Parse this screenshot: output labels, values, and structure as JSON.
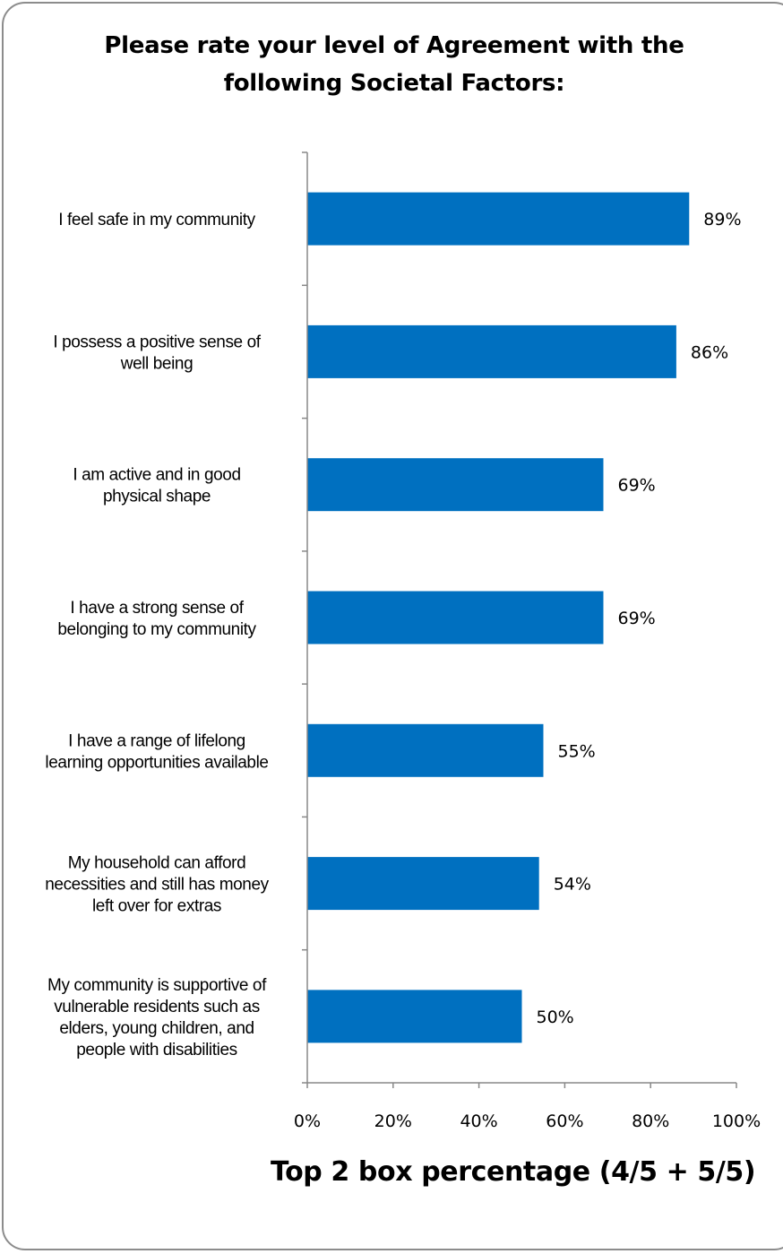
{
  "chart_data": {
    "type": "bar",
    "orientation": "horizontal",
    "title": "Please rate your level of Agreement with the following Societal Factors:",
    "xlabel": "Top 2 box percentage (4/5 + 5/5)",
    "ylabel": "",
    "categories": [
      "I feel safe in my community",
      "I possess a positive sense of well being",
      "I am active and in good physical shape",
      "I have a strong sense of belonging to my community",
      "I have a range of lifelong learning opportunities available",
      "My household can afford necessities and still has money left over for extras",
      "My community is supportive of vulnerable residents such as elders, young children, and people with disabilities"
    ],
    "category_lines": [
      [
        "I feel safe in my community"
      ],
      [
        "I possess a positive sense of",
        "well being"
      ],
      [
        "I am active and in good",
        "physical shape"
      ],
      [
        "I have a strong sense of",
        "belonging to my community"
      ],
      [
        "I have a range of lifelong",
        "learning opportunities available"
      ],
      [
        "My household can afford",
        "necessities and still has money",
        "left over for extras"
      ],
      [
        "My community is supportive of",
        "vulnerable residents such as",
        "elders, young children, and",
        "people with disabilities"
      ]
    ],
    "values": [
      89,
      86,
      69,
      69,
      55,
      54,
      50
    ],
    "value_labels": [
      "89%",
      "86%",
      "69%",
      "69%",
      "55%",
      "54%",
      "50%"
    ],
    "xlim": [
      0,
      100
    ],
    "xticks": [
      0,
      20,
      40,
      60,
      80,
      100
    ],
    "xtick_labels": [
      "0%",
      "20%",
      "40%",
      "60%",
      "80%",
      "100%"
    ],
    "grid": false,
    "legend": "none",
    "bar_color": "#0070c0"
  }
}
